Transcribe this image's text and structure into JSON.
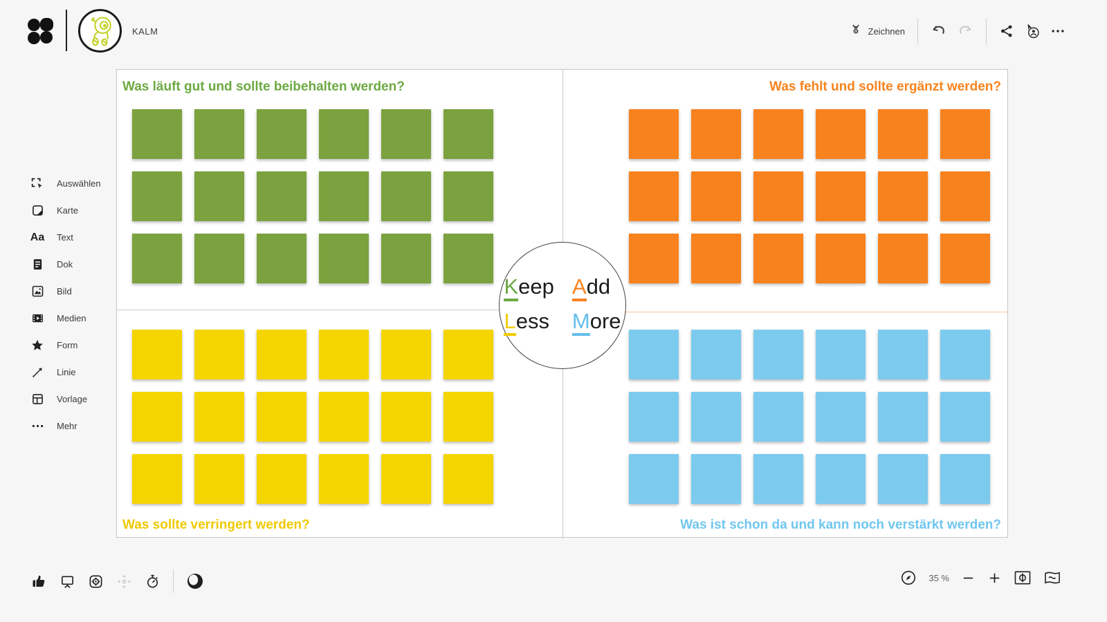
{
  "topbar": {
    "project_name": "KALM",
    "draw_label": "Zeichnen"
  },
  "sidebar": {
    "items": [
      {
        "label": "Auswählen",
        "icon": "select-icon"
      },
      {
        "label": "Karte",
        "icon": "card-icon"
      },
      {
        "label": "Text",
        "icon": "text-icon"
      },
      {
        "label": "Dok",
        "icon": "document-icon"
      },
      {
        "label": "Bild",
        "icon": "image-icon"
      },
      {
        "label": "Medien",
        "icon": "media-icon"
      },
      {
        "label": "Form",
        "icon": "shape-icon"
      },
      {
        "label": "Linie",
        "icon": "line-icon"
      },
      {
        "label": "Vorlage",
        "icon": "template-icon"
      },
      {
        "label": "Mehr",
        "icon": "more-icon"
      }
    ]
  },
  "board": {
    "quadrants": [
      {
        "id": "keep",
        "title": "Was läuft gut und sollte beibehalten werden?",
        "title_color": "#6CA943",
        "note_color": "#7BA23E",
        "rows": 3,
        "cols": 6
      },
      {
        "id": "add",
        "title": "Was fehlt und sollte ergänzt werden?",
        "title_color": "#F8831D",
        "note_color": "#F8821E",
        "rows": 3,
        "cols": 6
      },
      {
        "id": "less",
        "title": "Was sollte verringert werden?",
        "title_color": "#EFC900",
        "note_color": "#F5D500",
        "rows": 3,
        "cols": 6
      },
      {
        "id": "more",
        "title": "Was ist schon da und kann noch verstärkt werden?",
        "title_color": "#70C6EE",
        "note_color": "#7CCBEF",
        "rows": 3,
        "cols": 6
      }
    ],
    "center_words": [
      {
        "first": "K",
        "rest": "eep",
        "color": "#6CA943"
      },
      {
        "first": "A",
        "rest": "dd",
        "color": "#F8831D"
      },
      {
        "first": "L",
        "rest": "ess",
        "color": "#F2CE00"
      },
      {
        "first": "M",
        "rest": "ore",
        "color": "#64BEEC"
      }
    ]
  },
  "bottombar": {
    "zoom_level": "35 %"
  }
}
